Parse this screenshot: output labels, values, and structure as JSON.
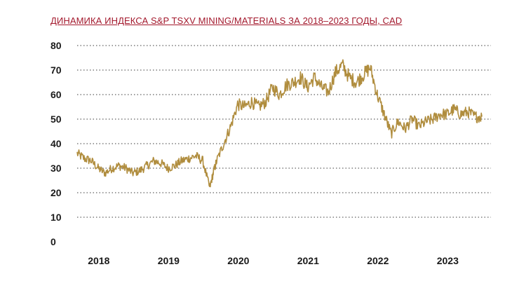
{
  "chart_data": {
    "type": "line",
    "title": "ДИНАМИКА ИНДЕКСА S&P TSXV MINING/MATERIALS ЗА 2018–2023 ГОДЫ, CAD",
    "xlabel": "",
    "ylabel": "",
    "ylim": [
      0,
      80
    ],
    "xlim": [
      2017.7,
      2023.6
    ],
    "yticks": [
      0,
      10,
      20,
      30,
      40,
      50,
      60,
      70,
      80
    ],
    "xticks": [
      2018,
      2019,
      2020,
      2021,
      2022,
      2023
    ],
    "xtick_labels": [
      "2018",
      "2019",
      "2020",
      "2021",
      "2022",
      "2023"
    ],
    "grid": "horizontal dotted",
    "series": [
      {
        "name": "S&P TSXV Mining/Materials",
        "color": "#b08d3e",
        "x": [
          2017.7,
          2017.8,
          2017.9,
          2018.0,
          2018.1,
          2018.2,
          2018.3,
          2018.4,
          2018.5,
          2018.6,
          2018.7,
          2018.8,
          2018.9,
          2019.0,
          2019.1,
          2019.2,
          2019.3,
          2019.4,
          2019.5,
          2019.6,
          2019.65,
          2019.7,
          2019.8,
          2019.9,
          2020.0,
          2020.1,
          2020.2,
          2020.3,
          2020.4,
          2020.5,
          2020.6,
          2020.7,
          2020.8,
          2020.9,
          2021.0,
          2021.1,
          2021.2,
          2021.3,
          2021.4,
          2021.5,
          2021.6,
          2021.7,
          2021.8,
          2021.9,
          2022.0,
          2022.1,
          2022.2,
          2022.3,
          2022.4,
          2022.5,
          2022.6,
          2022.7,
          2022.8,
          2022.9,
          2023.0,
          2023.1,
          2023.2,
          2023.3,
          2023.4,
          2023.5
        ],
        "values": [
          36,
          34,
          33,
          30,
          28,
          30,
          31,
          30,
          28,
          29,
          31,
          33,
          32,
          30,
          31,
          33,
          34,
          35,
          33,
          22,
          28,
          33,
          40,
          47,
          56,
          55,
          57,
          55,
          57,
          63,
          60,
          64,
          65,
          67,
          63,
          67,
          63,
          61,
          69,
          72,
          67,
          65,
          68,
          71,
          60,
          52,
          44,
          49,
          46,
          50,
          47,
          49,
          50,
          52,
          52,
          54,
          52,
          53,
          51,
          51
        ]
      }
    ]
  }
}
